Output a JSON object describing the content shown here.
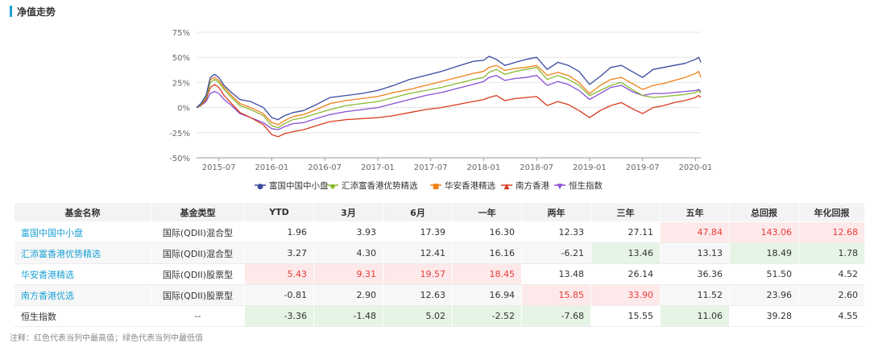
{
  "section": {
    "title": "净值走势"
  },
  "chart_data": {
    "type": "line",
    "title": "",
    "ylabel": "",
    "ylim": [
      -50,
      75
    ],
    "yticks": [
      "75%",
      "50%",
      "25%",
      "0%",
      "-25%",
      "-50%"
    ],
    "yticks_values": [
      75,
      50,
      25,
      0,
      -25,
      -50
    ],
    "xlim": [
      2015.29,
      2020.05
    ],
    "xticks": [
      "2015-07",
      "2016-01",
      "2016-07",
      "2017-01",
      "2017-07",
      "2018-01",
      "2018-07",
      "2019-01",
      "2019-07",
      "2020-01"
    ],
    "xticks_values": [
      2015.5,
      2016.0,
      2016.5,
      2017.0,
      2017.5,
      2018.0,
      2018.5,
      2019.0,
      2019.5,
      2020.0
    ],
    "legend_position": "bottom",
    "series": [
      {
        "name": "富国中国中小盘",
        "color": "#3a4aa0",
        "marker": "●",
        "x": [
          2015.29,
          2015.33,
          2015.38,
          2015.42,
          2015.46,
          2015.5,
          2015.55,
          2015.62,
          2015.7,
          2015.8,
          2015.92,
          2016.0,
          2016.06,
          2016.12,
          2016.2,
          2016.3,
          2016.42,
          2016.55,
          2016.7,
          2016.85,
          2017.0,
          2017.15,
          2017.3,
          2017.45,
          2017.6,
          2017.75,
          2017.9,
          2018.0,
          2018.05,
          2018.12,
          2018.2,
          2018.3,
          2018.4,
          2018.5,
          2018.6,
          2018.7,
          2018.8,
          2018.9,
          2019.0,
          2019.1,
          2019.2,
          2019.3,
          2019.4,
          2019.5,
          2019.6,
          2019.7,
          2019.8,
          2019.9,
          2020.0,
          2020.03,
          2020.05
        ],
        "y": [
          0,
          4,
          12,
          30,
          33,
          30,
          22,
          15,
          8,
          6,
          0,
          -10,
          -12,
          -8,
          -5,
          -3,
          3,
          10,
          12,
          14,
          17,
          22,
          28,
          32,
          36,
          41,
          46,
          47,
          51,
          48,
          42,
          45,
          48,
          50,
          38,
          45,
          42,
          36,
          23,
          31,
          40,
          42,
          36,
          30,
          38,
          40,
          42,
          44,
          48,
          50,
          45
        ]
      },
      {
        "name": "汇添富香港优势精选",
        "color": "#8bb832",
        "marker": "◆",
        "x": [
          2015.29,
          2015.33,
          2015.38,
          2015.42,
          2015.46,
          2015.5,
          2015.55,
          2015.62,
          2015.7,
          2015.8,
          2015.92,
          2016.0,
          2016.06,
          2016.12,
          2016.2,
          2016.3,
          2016.42,
          2016.55,
          2016.7,
          2016.85,
          2017.0,
          2017.15,
          2017.3,
          2017.45,
          2017.6,
          2017.75,
          2017.9,
          2018.0,
          2018.05,
          2018.12,
          2018.2,
          2018.3,
          2018.4,
          2018.5,
          2018.6,
          2018.7,
          2018.8,
          2018.9,
          2019.0,
          2019.1,
          2019.2,
          2019.3,
          2019.4,
          2019.5,
          2019.6,
          2019.7,
          2019.8,
          2019.9,
          2020.0,
          2020.03,
          2020.05
        ],
        "y": [
          0,
          3,
          10,
          25,
          28,
          25,
          18,
          10,
          2,
          -2,
          -8,
          -18,
          -20,
          -16,
          -12,
          -10,
          -6,
          -2,
          2,
          4,
          6,
          10,
          14,
          17,
          20,
          24,
          28,
          30,
          35,
          38,
          33,
          36,
          38,
          40,
          28,
          32,
          28,
          22,
          12,
          17,
          22,
          25,
          18,
          12,
          10,
          11,
          12,
          13,
          15,
          17,
          14
        ]
      },
      {
        "name": "华安香港精选",
        "color": "#f0811a",
        "marker": "■",
        "x": [
          2015.29,
          2015.33,
          2015.38,
          2015.42,
          2015.46,
          2015.5,
          2015.55,
          2015.62,
          2015.7,
          2015.8,
          2015.92,
          2016.0,
          2016.06,
          2016.12,
          2016.2,
          2016.3,
          2016.42,
          2016.55,
          2016.7,
          2016.85,
          2017.0,
          2017.15,
          2017.3,
          2017.45,
          2017.6,
          2017.75,
          2017.9,
          2018.0,
          2018.05,
          2018.12,
          2018.2,
          2018.3,
          2018.4,
          2018.5,
          2018.6,
          2018.7,
          2018.8,
          2018.9,
          2019.0,
          2019.1,
          2019.2,
          2019.3,
          2019.4,
          2019.5,
          2019.6,
          2019.7,
          2019.8,
          2019.9,
          2020.0,
          2020.03,
          2020.05
        ],
        "y": [
          0,
          3,
          11,
          28,
          30,
          27,
          20,
          12,
          4,
          0,
          -6,
          -15,
          -17,
          -13,
          -9,
          -7,
          -2,
          4,
          7,
          9,
          11,
          15,
          18,
          22,
          26,
          30,
          34,
          36,
          40,
          42,
          37,
          39,
          40,
          42,
          32,
          35,
          32,
          25,
          14,
          22,
          28,
          30,
          24,
          18,
          22,
          24,
          27,
          30,
          34,
          36,
          30
        ]
      },
      {
        "name": "南方香港",
        "color": "#d93a1e",
        "marker": "▲",
        "x": [
          2015.29,
          2015.33,
          2015.38,
          2015.42,
          2015.46,
          2015.5,
          2015.55,
          2015.62,
          2015.7,
          2015.8,
          2015.92,
          2016.0,
          2016.06,
          2016.12,
          2016.2,
          2016.3,
          2016.42,
          2016.55,
          2016.7,
          2016.85,
          2017.0,
          2017.15,
          2017.3,
          2017.45,
          2017.6,
          2017.75,
          2017.9,
          2018.0,
          2018.05,
          2018.12,
          2018.2,
          2018.3,
          2018.4,
          2018.5,
          2018.6,
          2018.7,
          2018.8,
          2018.9,
          2019.0,
          2019.1,
          2019.2,
          2019.3,
          2019.4,
          2019.5,
          2019.6,
          2019.7,
          2019.8,
          2019.9,
          2020.0,
          2020.03,
          2020.05
        ],
        "y": [
          0,
          2,
          8,
          20,
          23,
          20,
          12,
          4,
          -5,
          -10,
          -17,
          -27,
          -29,
          -26,
          -24,
          -22,
          -18,
          -14,
          -12,
          -11,
          -10,
          -8,
          -5,
          -2,
          0,
          3,
          6,
          8,
          10,
          12,
          7,
          9,
          10,
          11,
          2,
          6,
          3,
          -3,
          -10,
          -3,
          2,
          5,
          -1,
          -6,
          0,
          2,
          5,
          7,
          10,
          12,
          10
        ]
      },
      {
        "name": "恒生指数",
        "color": "#8a4fd4",
        "marker": "▼",
        "x": [
          2015.29,
          2015.33,
          2015.38,
          2015.42,
          2015.46,
          2015.5,
          2015.55,
          2015.62,
          2015.7,
          2015.8,
          2015.92,
          2016.0,
          2016.06,
          2016.12,
          2016.2,
          2016.3,
          2016.42,
          2016.55,
          2016.7,
          2016.85,
          2017.0,
          2017.15,
          2017.3,
          2017.45,
          2017.6,
          2017.75,
          2017.9,
          2018.0,
          2018.05,
          2018.12,
          2018.2,
          2018.3,
          2018.4,
          2018.5,
          2018.6,
          2018.7,
          2018.8,
          2018.9,
          2019.0,
          2019.1,
          2019.2,
          2019.3,
          2019.4,
          2019.5,
          2019.6,
          2019.7,
          2019.8,
          2019.9,
          2020.0,
          2020.03,
          2020.05
        ],
        "y": [
          0,
          2,
          6,
          14,
          16,
          14,
          8,
          2,
          -6,
          -10,
          -15,
          -21,
          -22,
          -19,
          -16,
          -15,
          -11,
          -7,
          -4,
          -2,
          0,
          4,
          8,
          12,
          15,
          19,
          23,
          26,
          30,
          32,
          27,
          29,
          30,
          32,
          22,
          26,
          23,
          17,
          8,
          14,
          20,
          22,
          16,
          12,
          14,
          14,
          15,
          16,
          17,
          18,
          16
        ]
      }
    ]
  },
  "table": {
    "headers": [
      "基金名称",
      "基金类型",
      "YTD",
      "3月",
      "6月",
      "一年",
      "两年",
      "三年",
      "五年",
      "总回报",
      "年化回报"
    ],
    "rows": [
      {
        "name": "富国中国中小盘",
        "type": "国际(QDII)混合型",
        "values": [
          "1.96",
          "3.93",
          "17.39",
          "16.30",
          "12.33",
          "27.11",
          "47.84",
          "143.06",
          "12.68"
        ]
      },
      {
        "name": "汇添富香港优势精选",
        "type": "国际(QDII)混合型",
        "values": [
          "3.27",
          "4.30",
          "12.41",
          "16.16",
          "-6.21",
          "13.46",
          "13.13",
          "18.49",
          "1.78"
        ]
      },
      {
        "name": "华安香港精选",
        "type": "国际(QDII)股票型",
        "values": [
          "5.43",
          "9.31",
          "19.57",
          "18.45",
          "13.48",
          "26.14",
          "36.36",
          "51.50",
          "4.52"
        ]
      },
      {
        "name": "南方香港优选",
        "type": "国际(QDII)股票型",
        "values": [
          "-0.81",
          "2.90",
          "12.63",
          "16.94",
          "15.85",
          "33.90",
          "11.52",
          "23.96",
          "2.60"
        ]
      },
      {
        "name": "恒生指数",
        "type": "--",
        "values": [
          "-3.36",
          "-1.48",
          "5.02",
          "-2.52",
          "-7.68",
          "15.55",
          "11.06",
          "39.28",
          "4.55"
        ]
      }
    ]
  },
  "note": "注释：红色代表当列中最高值；绿色代表当列中最低值"
}
